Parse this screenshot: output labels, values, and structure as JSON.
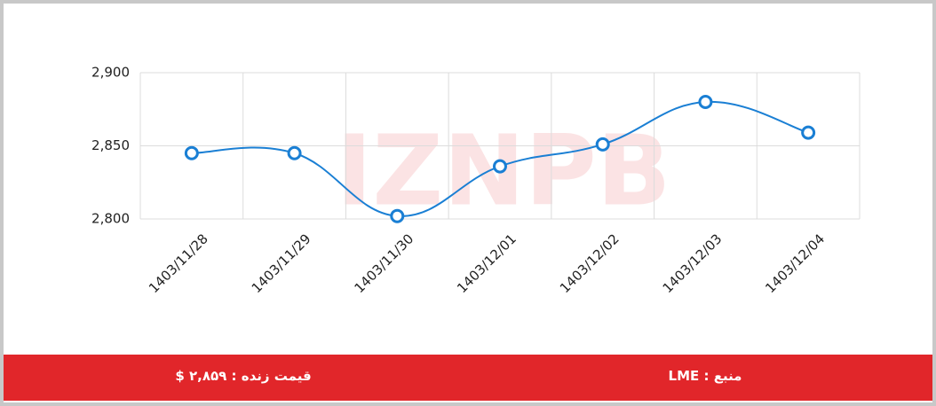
{
  "chart_data": {
    "type": "line",
    "watermark": "IZNPB",
    "categories": [
      "1403/11/28",
      "1403/11/29",
      "1403/11/30",
      "1403/12/01",
      "1403/12/02",
      "1403/12/03",
      "1403/12/04"
    ],
    "series": [
      {
        "name": "LME",
        "color": "#1a7fd4",
        "values": [
          2845,
          2845,
          2802,
          2836,
          2851,
          2880,
          2859
        ]
      }
    ],
    "ylim": [
      2800,
      2900
    ],
    "yticks": [
      {
        "value": 2800,
        "label": "2,800"
      },
      {
        "value": 2850,
        "label": "2,850"
      },
      {
        "value": 2900,
        "label": "2,900"
      }
    ],
    "grid": true
  },
  "footer": {
    "live_price": "قیمت زنده : ۲,۸۵۹ $",
    "source": "منبع : LME"
  }
}
